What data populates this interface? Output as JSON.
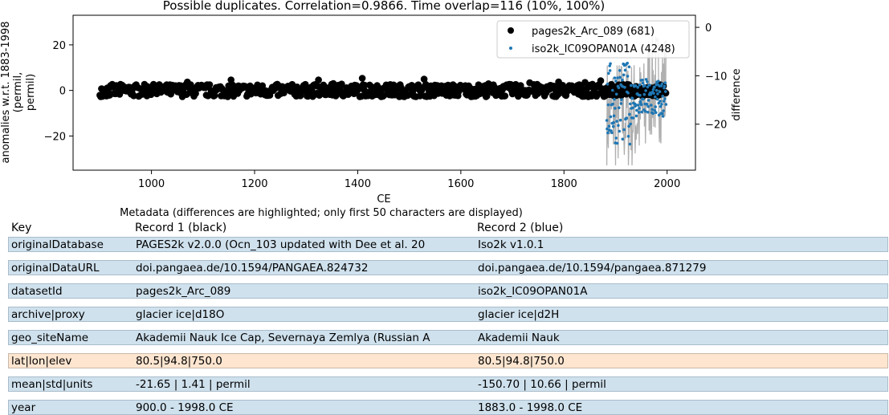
{
  "chart_data": {
    "type": "scatter",
    "title": "Possible duplicates. Correlation=0.9866. Time overlap=116 (10%, 100%)",
    "xlabel": "CE",
    "ylabel_lines": [
      "anomalies w.r.t. 1883-1998",
      "(permil,",
      "permil)"
    ],
    "y2label": "difference",
    "xlim": [
      848,
      2055
    ],
    "ylim": [
      -35,
      33
    ],
    "y2lim": [
      -29.5,
      2.5
    ],
    "xticks": [
      1000,
      1200,
      1400,
      1600,
      1800,
      2000
    ],
    "yticks": [
      20,
      0,
      -20
    ],
    "y2ticks": [
      0,
      -10,
      -20
    ],
    "legend_position": "top-right",
    "series": [
      {
        "name": "pages2k_Arc_089 (681)",
        "color": "#000000",
        "marker": "circle",
        "x_start": 900,
        "x_end": 1998,
        "mean": -1.4,
        "approx_std": 1.41
      },
      {
        "name": "iso2k_IC09OPAN01A (4248)",
        "color": "#1f77b4",
        "marker": "small-dot",
        "x_start": 1883,
        "x_end": 1998,
        "mean": -150.7,
        "approx_std": 10.66
      },
      {
        "color": "#b0b0b0",
        "marker": "line",
        "axis": "secondary",
        "x_start": 1883,
        "x_end": 1998
      }
    ]
  },
  "table": {
    "caption": "Metadata (differences are highlighted; only first 50 characters are displayed)",
    "headers": {
      "key": "Key",
      "r1": "Record 1 (black)",
      "r2": "Record 2 (blue)"
    },
    "rows": [
      {
        "key": "originalDatabase",
        "r1": "PAGES2k v2.0.0 (Ocn_103 updated with Dee et al. 20",
        "r2": "Iso2k v1.0.1",
        "diff": false
      },
      {
        "key": "originalDataURL",
        "r1": "doi.pangaea.de/10.1594/PANGAEA.824732",
        "r2": "doi.pangaea.de/10.1594/pangaea.871279",
        "diff": false
      },
      {
        "key": "datasetId",
        "r1": "pages2k_Arc_089",
        "r2": "iso2k_IC09OPAN01A",
        "diff": false
      },
      {
        "key": "archive|proxy",
        "r1": "glacier ice|d18O",
        "r2": "glacier ice|d2H",
        "diff": false
      },
      {
        "key": "geo_siteName",
        "r1": "Akademii Nauk Ice Cap, Severnaya Zemlya (Russian A",
        "r2": "Akademii Nauk",
        "diff": false
      },
      {
        "key": "lat|lon|elev",
        "r1": "80.5|94.8|750.0",
        "r2": "80.5|94.8|750.0",
        "diff": true
      },
      {
        "key": "mean|std|units",
        "r1": "-21.65 | 1.41 | permil",
        "r2": "-150.70 | 10.66 | permil",
        "diff": false
      },
      {
        "key": "year",
        "r1": "900.0 - 1998.0 CE",
        "r2": "1883.0 - 1998.0 CE",
        "diff": false
      }
    ]
  }
}
